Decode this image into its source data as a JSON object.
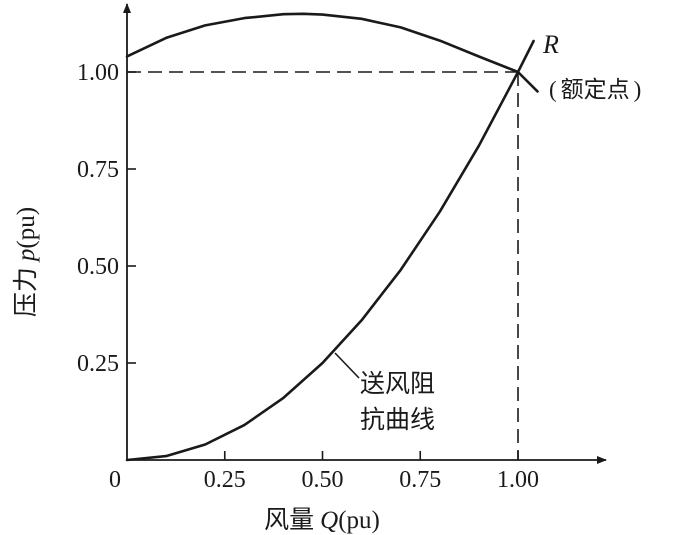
{
  "chart_data": {
    "type": "line",
    "x_axis": {
      "label_prefix": "风量",
      "label_var": "Q",
      "label_unit": "(pu)",
      "ticks": [
        {
          "value": 0,
          "label": "0"
        },
        {
          "value": 0.25,
          "label": "0.25"
        },
        {
          "value": 0.5,
          "label": "0.50"
        },
        {
          "value": 0.75,
          "label": "0.75"
        },
        {
          "value": 1.0,
          "label": "1.00"
        }
      ],
      "range": [
        0,
        1.2
      ]
    },
    "y_axis": {
      "label_prefix": "压力",
      "label_var": "p",
      "label_unit": "(pu)",
      "ticks": [
        {
          "value": 0.25,
          "label": "0.25"
        },
        {
          "value": 0.5,
          "label": "0.50"
        },
        {
          "value": 0.75,
          "label": "0.75"
        },
        {
          "value": 1.0,
          "label": "1.00"
        }
      ],
      "range": [
        0,
        1.15
      ]
    },
    "series": [
      {
        "key": "fan_curve",
        "x": [
          0,
          0.1,
          0.2,
          0.3,
          0.4,
          0.45,
          0.5,
          0.6,
          0.7,
          0.8,
          0.9,
          1.0,
          1.05
        ],
        "y": [
          1.04,
          1.088,
          1.12,
          1.139,
          1.149,
          1.15,
          1.148,
          1.137,
          1.115,
          1.081,
          1.04,
          1.0,
          0.95
        ]
      },
      {
        "key": "resistance_curve",
        "label_lines": [
          "送风阻",
          "抗曲线"
        ],
        "x": [
          0,
          0.1,
          0.2,
          0.3,
          0.4,
          0.5,
          0.6,
          0.7,
          0.8,
          0.9,
          1.0,
          1.04
        ],
        "y": [
          0,
          0.01,
          0.04,
          0.09,
          0.16,
          0.25,
          0.36,
          0.49,
          0.64,
          0.81,
          1.0,
          1.08
        ]
      }
    ],
    "rated_point": {
      "x": 1.0,
      "y": 1.0,
      "name": "R",
      "note_open": "(",
      "note": "额定点",
      "note_close": ")"
    }
  }
}
